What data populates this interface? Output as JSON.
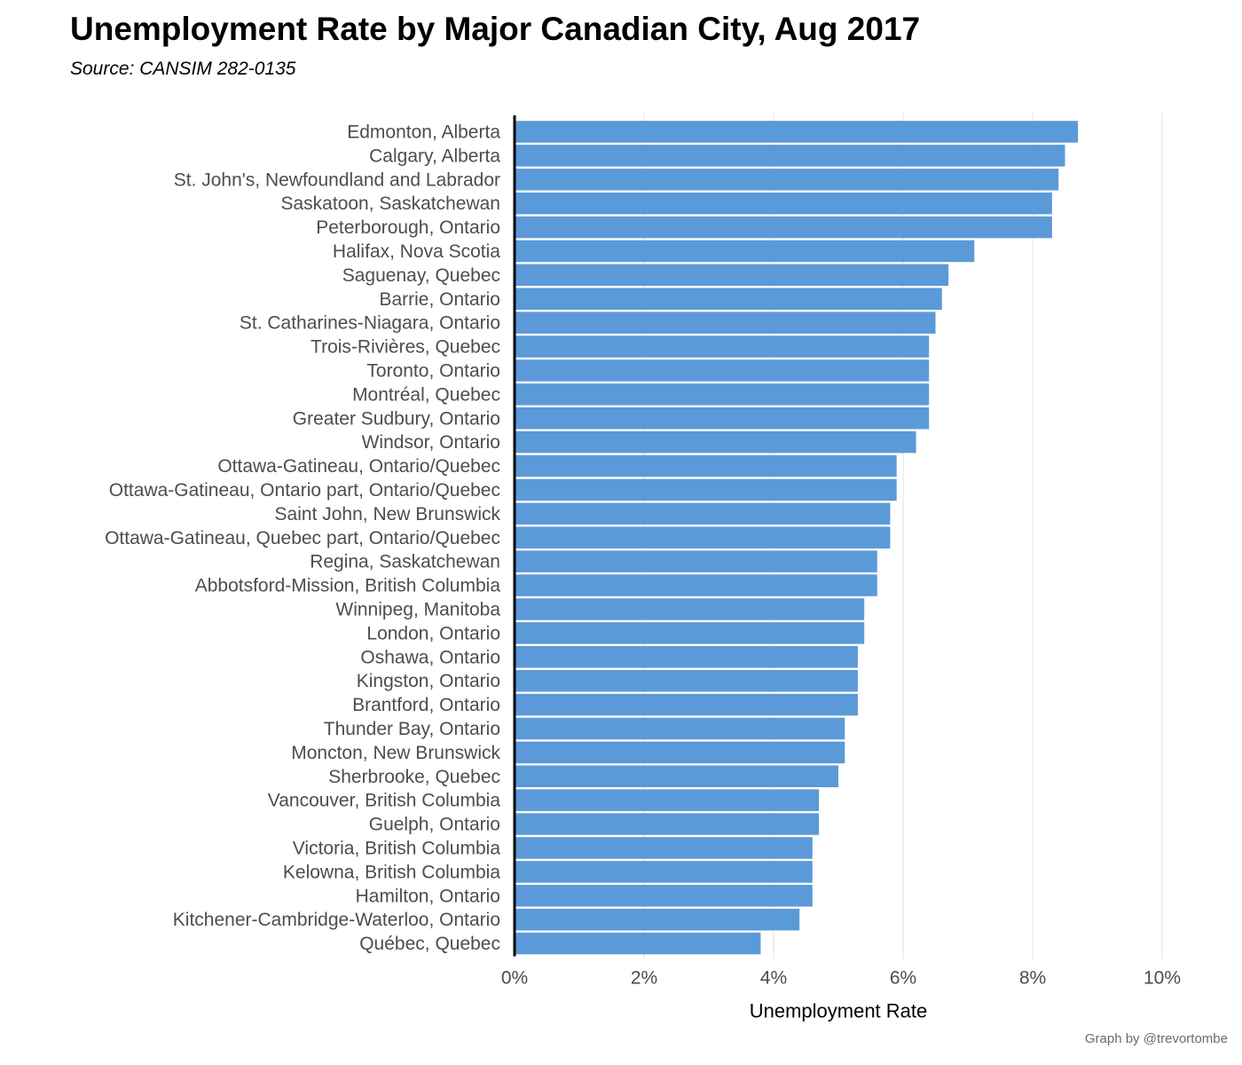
{
  "chart_data": {
    "type": "bar",
    "orientation": "horizontal",
    "title": "Unemployment Rate by Major Canadian City, Aug 2017",
    "subtitle": "Source: CANSIM 282-0135",
    "xlabel": "Unemployment Rate",
    "ylabel": "",
    "xlim": [
      0,
      10
    ],
    "x_ticks": [
      0,
      2,
      4,
      6,
      8,
      10
    ],
    "x_tick_labels": [
      "0%",
      "2%",
      "4%",
      "6%",
      "8%",
      "10%"
    ],
    "grid": "vertical",
    "legend": "none",
    "bar_color": "#5b9ad8",
    "categories": [
      "Edmonton, Alberta",
      "Calgary, Alberta",
      "St. John's, Newfoundland and Labrador",
      "Saskatoon, Saskatchewan",
      "Peterborough, Ontario",
      "Halifax, Nova Scotia",
      "Saguenay, Quebec",
      "Barrie, Ontario",
      "St. Catharines-Niagara, Ontario",
      "Trois-Rivières, Quebec",
      "Toronto, Ontario",
      "Montréal, Quebec",
      "Greater Sudbury, Ontario",
      "Windsor, Ontario",
      "Ottawa-Gatineau, Ontario/Quebec",
      "Ottawa-Gatineau, Ontario part, Ontario/Quebec",
      "Saint John, New Brunswick",
      "Ottawa-Gatineau, Quebec part, Ontario/Quebec",
      "Regina, Saskatchewan",
      "Abbotsford-Mission, British Columbia",
      "Winnipeg, Manitoba",
      "London, Ontario",
      "Oshawa, Ontario",
      "Kingston, Ontario",
      "Brantford, Ontario",
      "Thunder Bay, Ontario",
      "Moncton, New Brunswick",
      "Sherbrooke, Quebec",
      "Vancouver, British Columbia",
      "Guelph, Ontario",
      "Victoria, British Columbia",
      "Kelowna, British Columbia",
      "Hamilton, Ontario",
      "Kitchener-Cambridge-Waterloo, Ontario",
      "Québec, Quebec"
    ],
    "values": [
      8.7,
      8.5,
      8.4,
      8.3,
      8.3,
      7.1,
      6.7,
      6.6,
      6.5,
      6.4,
      6.4,
      6.4,
      6.4,
      6.2,
      5.9,
      5.9,
      5.8,
      5.8,
      5.6,
      5.6,
      5.4,
      5.4,
      5.3,
      5.3,
      5.3,
      5.1,
      5.1,
      5.0,
      4.7,
      4.7,
      4.6,
      4.6,
      4.6,
      4.4,
      3.8
    ]
  },
  "credit": "Graph by @trevortombe"
}
